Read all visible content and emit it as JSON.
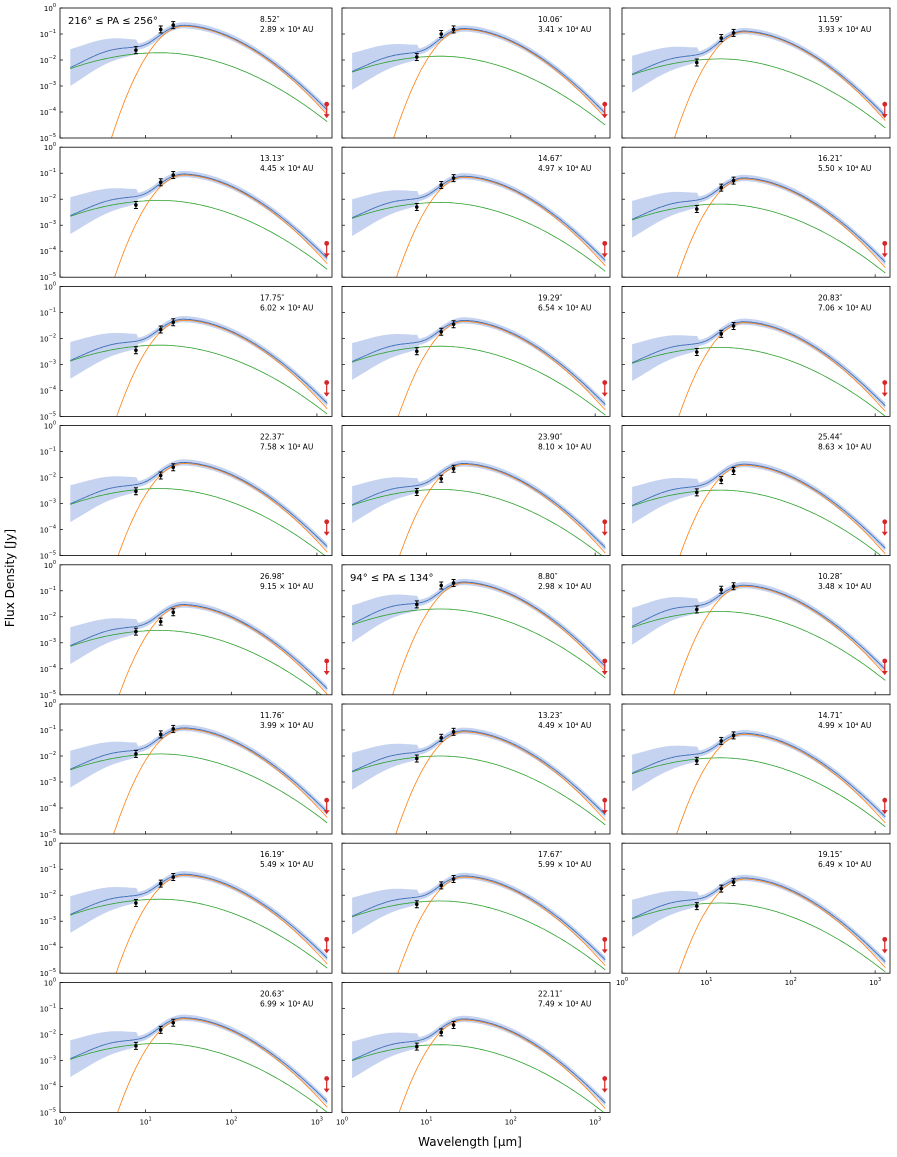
{
  "figure": {
    "ylabel": "Flux Density [Jy]",
    "xlabel": "Wavelength [μm]",
    "x_ticks": [
      {
        "value": 1,
        "mant": "10",
        "exp": "0"
      },
      {
        "value": 10,
        "mant": "10",
        "exp": "1"
      },
      {
        "value": 100,
        "mant": "10",
        "exp": "2"
      },
      {
        "value": 1000,
        "mant": "10",
        "exp": "3"
      }
    ],
    "y_ticks": [
      {
        "value": 1e-05,
        "mant": "10",
        "exp": "−5"
      },
      {
        "value": 0.0001,
        "mant": "10",
        "exp": "−4"
      },
      {
        "value": 0.001,
        "mant": "10",
        "exp": "−3"
      },
      {
        "value": 0.01,
        "mant": "10",
        "exp": "−2"
      },
      {
        "value": 0.1,
        "mant": "10",
        "exp": "−1"
      },
      {
        "value": 1,
        "mant": "10",
        "exp": "0"
      }
    ],
    "colors": {
      "total_model": "#9467bd",
      "warm_component": "#2ca02c",
      "cold_component": "#ff7f0e",
      "hot_component": "#1f77b4",
      "uncertainty_band": "#c6d3f0",
      "data_points": "#000000",
      "upper_limit": "#d62728",
      "axes": "#000000"
    }
  },
  "chart_data": [
    {
      "type": "line",
      "panel": 1,
      "group_label": "216° ≤ PA ≤ 256°",
      "offset_label": "8.52″",
      "distance_label": "2.89 × 10⁴ AU",
      "xscale": "log",
      "yscale": "log",
      "xlim": [
        1,
        1500
      ],
      "ylim": [
        1e-05,
        1
      ],
      "points": [
        {
          "x": 7.7,
          "y": 0.024
        },
        {
          "x": 15,
          "y": 0.15
        },
        {
          "x": 21,
          "y": 0.22
        }
      ],
      "upper_limit": {
        "x": 1300,
        "y": 0.0002
      },
      "series": [
        {
          "kind": "warm",
          "peak_x": 15,
          "peak_y": 0.019
        },
        {
          "kind": "cold",
          "peak_x": 28,
          "peak_y": 0.2
        }
      ]
    },
    {
      "type": "line",
      "panel": 2,
      "offset_label": "10.06″",
      "distance_label": "3.41 × 10⁴ AU",
      "xscale": "log",
      "yscale": "log",
      "xlim": [
        1,
        1500
      ],
      "ylim": [
        1e-05,
        1
      ],
      "points": [
        {
          "x": 7.7,
          "y": 0.013
        },
        {
          "x": 15,
          "y": 0.1
        },
        {
          "x": 21,
          "y": 0.15
        }
      ],
      "upper_limit": {
        "x": 1300,
        "y": 0.0002
      },
      "series": [
        {
          "kind": "warm",
          "peak_x": 15,
          "peak_y": 0.014
        },
        {
          "kind": "cold",
          "peak_x": 28,
          "peak_y": 0.15
        }
      ]
    },
    {
      "type": "line",
      "panel": 3,
      "offset_label": "11.59″",
      "distance_label": "3.93 × 10⁴ AU",
      "xscale": "log",
      "yscale": "log",
      "xlim": [
        1,
        1500
      ],
      "ylim": [
        1e-05,
        1
      ],
      "points": [
        {
          "x": 7.7,
          "y": 0.008
        },
        {
          "x": 15,
          "y": 0.07
        },
        {
          "x": 21,
          "y": 0.11
        }
      ],
      "upper_limit": {
        "x": 1300,
        "y": 0.0002
      },
      "series": [
        {
          "kind": "warm",
          "peak_x": 15,
          "peak_y": 0.011
        },
        {
          "kind": "cold",
          "peak_x": 28,
          "peak_y": 0.12
        }
      ]
    },
    {
      "type": "line",
      "panel": 4,
      "offset_label": "13.13″",
      "distance_label": "4.45 × 10⁴ AU",
      "xscale": "log",
      "yscale": "log",
      "xlim": [
        1,
        1500
      ],
      "ylim": [
        1e-05,
        1
      ],
      "points": [
        {
          "x": 7.7,
          "y": 0.006
        },
        {
          "x": 15,
          "y": 0.045
        },
        {
          "x": 21,
          "y": 0.085
        }
      ],
      "upper_limit": {
        "x": 1300,
        "y": 0.0002
      },
      "series": [
        {
          "kind": "warm",
          "peak_x": 15,
          "peak_y": 0.009
        },
        {
          "kind": "cold",
          "peak_x": 28,
          "peak_y": 0.085
        }
      ]
    },
    {
      "type": "line",
      "panel": 5,
      "offset_label": "14.67″",
      "distance_label": "4.97 × 10⁴ AU",
      "xscale": "log",
      "yscale": "log",
      "xlim": [
        1,
        1500
      ],
      "ylim": [
        1e-05,
        1
      ],
      "points": [
        {
          "x": 7.7,
          "y": 0.005
        },
        {
          "x": 15,
          "y": 0.035
        },
        {
          "x": 21,
          "y": 0.065
        }
      ],
      "upper_limit": {
        "x": 1300,
        "y": 0.0002
      },
      "series": [
        {
          "kind": "warm",
          "peak_x": 15,
          "peak_y": 0.0075
        },
        {
          "kind": "cold",
          "peak_x": 28,
          "peak_y": 0.07
        }
      ]
    },
    {
      "type": "line",
      "panel": 6,
      "offset_label": "16.21″",
      "distance_label": "5.50 × 10⁴ AU",
      "xscale": "log",
      "yscale": "log",
      "xlim": [
        1,
        1500
      ],
      "ylim": [
        1e-05,
        1
      ],
      "points": [
        {
          "x": 7.7,
          "y": 0.0042
        },
        {
          "x": 15,
          "y": 0.028
        },
        {
          "x": 21,
          "y": 0.052
        }
      ],
      "upper_limit": {
        "x": 1300,
        "y": 0.0002
      },
      "series": [
        {
          "kind": "warm",
          "peak_x": 15,
          "peak_y": 0.0065
        },
        {
          "kind": "cold",
          "peak_x": 28,
          "peak_y": 0.06
        }
      ]
    },
    {
      "type": "line",
      "panel": 7,
      "offset_label": "17.75″",
      "distance_label": "6.02 × 10⁴ AU",
      "xscale": "log",
      "yscale": "log",
      "xlim": [
        1,
        1500
      ],
      "ylim": [
        1e-05,
        1
      ],
      "points": [
        {
          "x": 7.7,
          "y": 0.0035
        },
        {
          "x": 15,
          "y": 0.022
        },
        {
          "x": 21,
          "y": 0.042
        }
      ],
      "upper_limit": {
        "x": 1300,
        "y": 0.0002
      },
      "series": [
        {
          "kind": "warm",
          "peak_x": 15,
          "peak_y": 0.0055
        },
        {
          "kind": "cold",
          "peak_x": 28,
          "peak_y": 0.05
        }
      ]
    },
    {
      "type": "line",
      "panel": 8,
      "offset_label": "19.29″",
      "distance_label": "6.54 × 10⁴ AU",
      "xscale": "log",
      "yscale": "log",
      "xlim": [
        1,
        1500
      ],
      "ylim": [
        1e-05,
        1
      ],
      "points": [
        {
          "x": 7.7,
          "y": 0.0032
        },
        {
          "x": 15,
          "y": 0.018
        },
        {
          "x": 21,
          "y": 0.035
        }
      ],
      "upper_limit": {
        "x": 1300,
        "y": 0.0002
      },
      "series": [
        {
          "kind": "warm",
          "peak_x": 15,
          "peak_y": 0.005
        },
        {
          "kind": "cold",
          "peak_x": 28,
          "peak_y": 0.045
        }
      ]
    },
    {
      "type": "line",
      "panel": 9,
      "offset_label": "20.83″",
      "distance_label": "7.06 × 10⁴ AU",
      "xscale": "log",
      "yscale": "log",
      "xlim": [
        1,
        1500
      ],
      "ylim": [
        1e-05,
        1
      ],
      "points": [
        {
          "x": 7.7,
          "y": 0.003
        },
        {
          "x": 15,
          "y": 0.015
        },
        {
          "x": 21,
          "y": 0.03
        }
      ],
      "upper_limit": {
        "x": 1300,
        "y": 0.0002
      },
      "series": [
        {
          "kind": "warm",
          "peak_x": 15,
          "peak_y": 0.0045
        },
        {
          "kind": "cold",
          "peak_x": 28,
          "peak_y": 0.04
        }
      ]
    },
    {
      "type": "line",
      "panel": 10,
      "offset_label": "22.37″",
      "distance_label": "7.58 × 10⁴ AU",
      "xscale": "log",
      "yscale": "log",
      "xlim": [
        1,
        1500
      ],
      "ylim": [
        1e-05,
        1
      ],
      "points": [
        {
          "x": 7.7,
          "y": 0.003
        },
        {
          "x": 15,
          "y": 0.012
        },
        {
          "x": 21,
          "y": 0.025
        }
      ],
      "upper_limit": {
        "x": 1300,
        "y": 0.0002
      },
      "series": [
        {
          "kind": "warm",
          "peak_x": 15,
          "peak_y": 0.0038
        },
        {
          "kind": "cold",
          "peak_x": 28,
          "peak_y": 0.035
        }
      ]
    },
    {
      "type": "line",
      "panel": 11,
      "offset_label": "23.90″",
      "distance_label": "8.10 × 10⁴ AU",
      "xscale": "log",
      "yscale": "log",
      "xlim": [
        1,
        1500
      ],
      "ylim": [
        1e-05,
        1
      ],
      "points": [
        {
          "x": 7.7,
          "y": 0.0028
        },
        {
          "x": 15,
          "y": 0.009
        },
        {
          "x": 21,
          "y": 0.022
        }
      ],
      "upper_limit": {
        "x": 1300,
        "y": 0.0002
      },
      "series": [
        {
          "kind": "warm",
          "peak_x": 15,
          "peak_y": 0.0035
        },
        {
          "kind": "cold",
          "peak_x": 28,
          "peak_y": 0.032
        }
      ]
    },
    {
      "type": "line",
      "panel": 12,
      "offset_label": "25.44″",
      "distance_label": "8.63 × 10⁴ AU",
      "xscale": "log",
      "yscale": "log",
      "xlim": [
        1,
        1500
      ],
      "ylim": [
        1e-05,
        1
      ],
      "points": [
        {
          "x": 7.7,
          "y": 0.0027
        },
        {
          "x": 15,
          "y": 0.008
        },
        {
          "x": 21,
          "y": 0.018
        }
      ],
      "upper_limit": {
        "x": 1300,
        "y": 0.0002
      },
      "series": [
        {
          "kind": "warm",
          "peak_x": 15,
          "peak_y": 0.0033
        },
        {
          "kind": "cold",
          "peak_x": 28,
          "peak_y": 0.03
        }
      ]
    },
    {
      "type": "line",
      "panel": 13,
      "offset_label": "26.98″",
      "distance_label": "9.15 × 10⁴ AU",
      "xscale": "log",
      "yscale": "log",
      "xlim": [
        1,
        1500
      ],
      "ylim": [
        1e-05,
        1
      ],
      "points": [
        {
          "x": 7.7,
          "y": 0.0027
        },
        {
          "x": 15,
          "y": 0.0065
        },
        {
          "x": 21,
          "y": 0.015
        }
      ],
      "upper_limit": {
        "x": 1300,
        "y": 0.0002
      },
      "series": [
        {
          "kind": "warm",
          "peak_x": 15,
          "peak_y": 0.003
        },
        {
          "kind": "cold",
          "peak_x": 28,
          "peak_y": 0.027
        }
      ]
    },
    {
      "type": "line",
      "panel": 14,
      "group_label": "94° ≤ PA ≤ 134°",
      "offset_label": "8.80″",
      "distance_label": "2.98 × 10⁴ AU",
      "xscale": "log",
      "yscale": "log",
      "xlim": [
        1,
        1500
      ],
      "ylim": [
        1e-05,
        1
      ],
      "points": [
        {
          "x": 7.7,
          "y": 0.03
        },
        {
          "x": 15,
          "y": 0.16
        },
        {
          "x": 21,
          "y": 0.2
        }
      ],
      "upper_limit": {
        "x": 1300,
        "y": 0.0002
      },
      "series": [
        {
          "kind": "warm",
          "peak_x": 15,
          "peak_y": 0.02
        },
        {
          "kind": "cold",
          "peak_x": 28,
          "peak_y": 0.2
        }
      ]
    },
    {
      "type": "line",
      "panel": 15,
      "offset_label": "10.28″",
      "distance_label": "3.48 × 10⁴ AU",
      "xscale": "log",
      "yscale": "log",
      "xlim": [
        1,
        1500
      ],
      "ylim": [
        1e-05,
        1
      ],
      "points": [
        {
          "x": 7.7,
          "y": 0.019
        },
        {
          "x": 15,
          "y": 0.11
        },
        {
          "x": 21,
          "y": 0.15
        }
      ],
      "upper_limit": {
        "x": 1300,
        "y": 0.0002
      },
      "series": [
        {
          "kind": "warm",
          "peak_x": 15,
          "peak_y": 0.016
        },
        {
          "kind": "cold",
          "peak_x": 28,
          "peak_y": 0.15
        }
      ]
    },
    {
      "type": "line",
      "panel": 16,
      "offset_label": "11.76″",
      "distance_label": "3.99 × 10⁴ AU",
      "xscale": "log",
      "yscale": "log",
      "xlim": [
        1,
        1500
      ],
      "ylim": [
        1e-05,
        1
      ],
      "points": [
        {
          "x": 7.7,
          "y": 0.012
        },
        {
          "x": 15,
          "y": 0.068
        },
        {
          "x": 21,
          "y": 0.11
        }
      ],
      "upper_limit": {
        "x": 1300,
        "y": 0.0002
      },
      "series": [
        {
          "kind": "warm",
          "peak_x": 15,
          "peak_y": 0.012
        },
        {
          "kind": "cold",
          "peak_x": 28,
          "peak_y": 0.11
        }
      ]
    },
    {
      "type": "line",
      "panel": 17,
      "offset_label": "13.23″",
      "distance_label": "4.49 × 10⁴ AU",
      "xscale": "log",
      "yscale": "log",
      "xlim": [
        1,
        1500
      ],
      "ylim": [
        1e-05,
        1
      ],
      "points": [
        {
          "x": 7.7,
          "y": 0.008
        },
        {
          "x": 15,
          "y": 0.05
        },
        {
          "x": 21,
          "y": 0.085
        }
      ],
      "upper_limit": {
        "x": 1300,
        "y": 0.0002
      },
      "series": [
        {
          "kind": "warm",
          "peak_x": 15,
          "peak_y": 0.01
        },
        {
          "kind": "cold",
          "peak_x": 28,
          "peak_y": 0.085
        }
      ]
    },
    {
      "type": "line",
      "panel": 18,
      "offset_label": "14.71″",
      "distance_label": "4.99 × 10⁴ AU",
      "xscale": "log",
      "yscale": "log",
      "xlim": [
        1,
        1500
      ],
      "ylim": [
        1e-05,
        1
      ],
      "points": [
        {
          "x": 7.7,
          "y": 0.0065
        },
        {
          "x": 15,
          "y": 0.038
        },
        {
          "x": 21,
          "y": 0.062
        }
      ],
      "upper_limit": {
        "x": 1300,
        "y": 0.0002
      },
      "series": [
        {
          "kind": "warm",
          "peak_x": 15,
          "peak_y": 0.0085
        },
        {
          "kind": "cold",
          "peak_x": 28,
          "peak_y": 0.068
        }
      ]
    },
    {
      "type": "line",
      "panel": 19,
      "offset_label": "16.19″",
      "distance_label": "5.49 × 10⁴ AU",
      "xscale": "log",
      "yscale": "log",
      "xlim": [
        1,
        1500
      ],
      "ylim": [
        1e-05,
        1
      ],
      "points": [
        {
          "x": 7.7,
          "y": 0.005
        },
        {
          "x": 15,
          "y": 0.028
        },
        {
          "x": 21,
          "y": 0.05
        }
      ],
      "upper_limit": {
        "x": 1300,
        "y": 0.0002
      },
      "series": [
        {
          "kind": "warm",
          "peak_x": 15,
          "peak_y": 0.007
        },
        {
          "kind": "cold",
          "peak_x": 28,
          "peak_y": 0.058
        }
      ]
    },
    {
      "type": "line",
      "panel": 20,
      "offset_label": "17.67″",
      "distance_label": "5.99 × 10⁴ AU",
      "xscale": "log",
      "yscale": "log",
      "xlim": [
        1,
        1500
      ],
      "ylim": [
        1e-05,
        1
      ],
      "points": [
        {
          "x": 7.7,
          "y": 0.0045
        },
        {
          "x": 15,
          "y": 0.024
        },
        {
          "x": 21,
          "y": 0.042
        }
      ],
      "upper_limit": {
        "x": 1300,
        "y": 0.0002
      },
      "series": [
        {
          "kind": "warm",
          "peak_x": 15,
          "peak_y": 0.006
        },
        {
          "kind": "cold",
          "peak_x": 28,
          "peak_y": 0.05
        }
      ]
    },
    {
      "type": "line",
      "panel": 21,
      "offset_label": "19.15″",
      "distance_label": "6.49 × 10⁴ AU",
      "xscale": "log",
      "yscale": "log",
      "xlim": [
        1,
        1500
      ],
      "ylim": [
        1e-05,
        1
      ],
      "points": [
        {
          "x": 7.7,
          "y": 0.0038
        },
        {
          "x": 15,
          "y": 0.018
        },
        {
          "x": 21,
          "y": 0.032
        }
      ],
      "upper_limit": {
        "x": 1300,
        "y": 0.0002
      },
      "series": [
        {
          "kind": "warm",
          "peak_x": 15,
          "peak_y": 0.005
        },
        {
          "kind": "cold",
          "peak_x": 28,
          "peak_y": 0.042
        }
      ]
    },
    {
      "type": "line",
      "panel": 22,
      "offset_label": "20.63″",
      "distance_label": "6.99 × 10⁴ AU",
      "xscale": "log",
      "yscale": "log",
      "xlim": [
        1,
        1500
      ],
      "ylim": [
        1e-05,
        1
      ],
      "points": [
        {
          "x": 7.7,
          "y": 0.0036
        },
        {
          "x": 15,
          "y": 0.015
        },
        {
          "x": 21,
          "y": 0.028
        }
      ],
      "upper_limit": {
        "x": 1300,
        "y": 0.0002
      },
      "series": [
        {
          "kind": "warm",
          "peak_x": 15,
          "peak_y": 0.0045
        },
        {
          "kind": "cold",
          "peak_x": 28,
          "peak_y": 0.04
        }
      ]
    },
    {
      "type": "line",
      "panel": 23,
      "offset_label": "22.11″",
      "distance_label": "7.49 × 10⁴ AU",
      "xscale": "log",
      "yscale": "log",
      "xlim": [
        1,
        1500
      ],
      "ylim": [
        1e-05,
        1
      ],
      "points": [
        {
          "x": 7.7,
          "y": 0.0034
        },
        {
          "x": 15,
          "y": 0.012
        },
        {
          "x": 21,
          "y": 0.023
        }
      ],
      "upper_limit": {
        "x": 1300,
        "y": 0.0002
      },
      "series": [
        {
          "kind": "warm",
          "peak_x": 15,
          "peak_y": 0.004
        },
        {
          "kind": "cold",
          "peak_x": 28,
          "peak_y": 0.036
        }
      ]
    }
  ]
}
